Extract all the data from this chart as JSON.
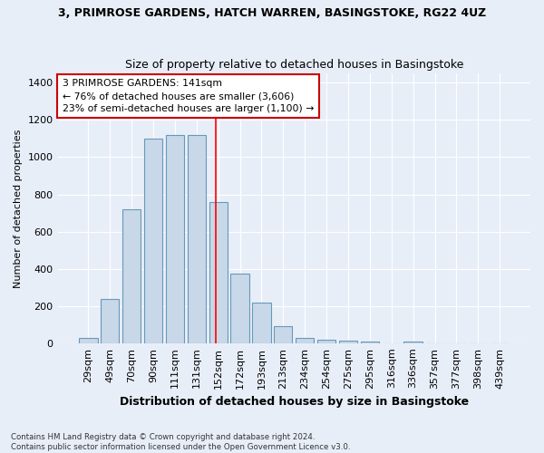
{
  "title_line1": "3, PRIMROSE GARDENS, HATCH WARREN, BASINGSTOKE, RG22 4UZ",
  "title_line2": "Size of property relative to detached houses in Basingstoke",
  "xlabel": "Distribution of detached houses by size in Basingstoke",
  "ylabel": "Number of detached properties",
  "footnote": "Contains HM Land Registry data © Crown copyright and database right 2024.\nContains public sector information licensed under the Open Government Licence v3.0.",
  "categories": [
    "29sqm",
    "49sqm",
    "70sqm",
    "90sqm",
    "111sqm",
    "131sqm",
    "152sqm",
    "172sqm",
    "193sqm",
    "213sqm",
    "234sqm",
    "254sqm",
    "275sqm",
    "295sqm",
    "316sqm",
    "336sqm",
    "357sqm",
    "377sqm",
    "398sqm",
    "439sqm"
  ],
  "values": [
    30,
    240,
    720,
    1100,
    1120,
    1120,
    760,
    375,
    220,
    90,
    30,
    20,
    15,
    10,
    0,
    10,
    0,
    0,
    0,
    0
  ],
  "bar_color": "#c8d8e8",
  "bar_edge_color": "#6699bb",
  "background_color": "#e8eef8",
  "grid_color": "#ffffff",
  "red_line_x": 5.9,
  "annotation_text": "3 PRIMROSE GARDENS: 141sqm\n← 76% of detached houses are smaller (3,606)\n23% of semi-detached houses are larger (1,100) →",
  "annotation_box_color": "#ffffff",
  "annotation_border_color": "#cc0000",
  "ylim": [
    0,
    1450
  ],
  "yticks": [
    0,
    200,
    400,
    600,
    800,
    1000,
    1200,
    1400
  ]
}
